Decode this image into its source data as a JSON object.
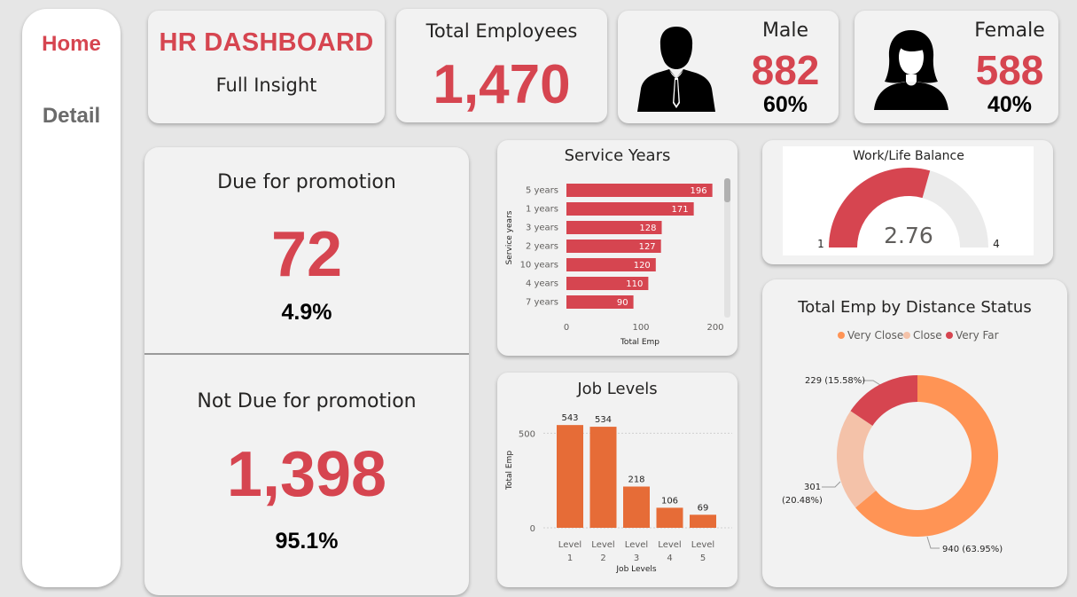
{
  "nav": {
    "home": "Home",
    "detail": "Detail"
  },
  "header": {
    "title": "HR DASHBOARD",
    "subtitle": "Full Insight"
  },
  "total": {
    "label": "Total Employees",
    "value": "1,470"
  },
  "male": {
    "label": "Male",
    "value": "882",
    "pct": "60%"
  },
  "female": {
    "label": "Female",
    "value": "588",
    "pct": "40%"
  },
  "promotion": {
    "due_label": "Due for promotion",
    "due_value": "72",
    "due_pct": "4.9%",
    "not_due_label": "Not Due for promotion",
    "not_due_value": "1,398",
    "not_due_pct": "95.1%"
  },
  "colors": {
    "accent": "#d64550",
    "bar_orange": "#e66c37",
    "very_close": "#ff9455",
    "close": "#f4c2a9",
    "very_far": "#d64550",
    "gauge_bg": "#ebebeb"
  },
  "icons": {
    "male": "male-silhouette-icon",
    "female": "female-silhouette-icon"
  },
  "chart_data": [
    {
      "type": "bar",
      "orientation": "horizontal",
      "title": "Service Years",
      "xlabel": "Total Emp",
      "ylabel": "Service years",
      "categories": [
        "5 years",
        "1 years",
        "3 years",
        "2 years",
        "10 years",
        "4 years",
        "7 years"
      ],
      "values": [
        196,
        171,
        128,
        127,
        120,
        110,
        90
      ],
      "xticks": [
        "0",
        "100",
        "200"
      ],
      "xlim": [
        0,
        200
      ]
    },
    {
      "type": "bar",
      "title": "Job Levels",
      "xlabel": "Job Levels",
      "ylabel": "Total Emp",
      "categories": [
        [
          "Level",
          "1"
        ],
        [
          "Level",
          "2"
        ],
        [
          "Level",
          "3"
        ],
        [
          "Level",
          "4"
        ],
        [
          "Level",
          "5"
        ]
      ],
      "values": [
        543,
        534,
        218,
        106,
        69
      ],
      "yticks": [
        "0",
        "500"
      ],
      "ylim": [
        0,
        600
      ]
    },
    {
      "type": "gauge",
      "title": "Work/Life Balance",
      "value": 2.76,
      "value_label": "2.76",
      "min": 1,
      "max": 4,
      "min_label": "1",
      "max_label": "4"
    },
    {
      "type": "pie",
      "variant": "donut",
      "title": "Total Emp by Distance Status",
      "legend_position": "top",
      "slices": [
        {
          "name": "Very Close",
          "value": 940,
          "label": "940 (63.95%)"
        },
        {
          "name": "Close",
          "value": 301,
          "label_line1": "301",
          "label_line2": "(20.48%)"
        },
        {
          "name": "Very Far",
          "value": 229,
          "label": "229 (15.58%)"
        }
      ]
    }
  ]
}
